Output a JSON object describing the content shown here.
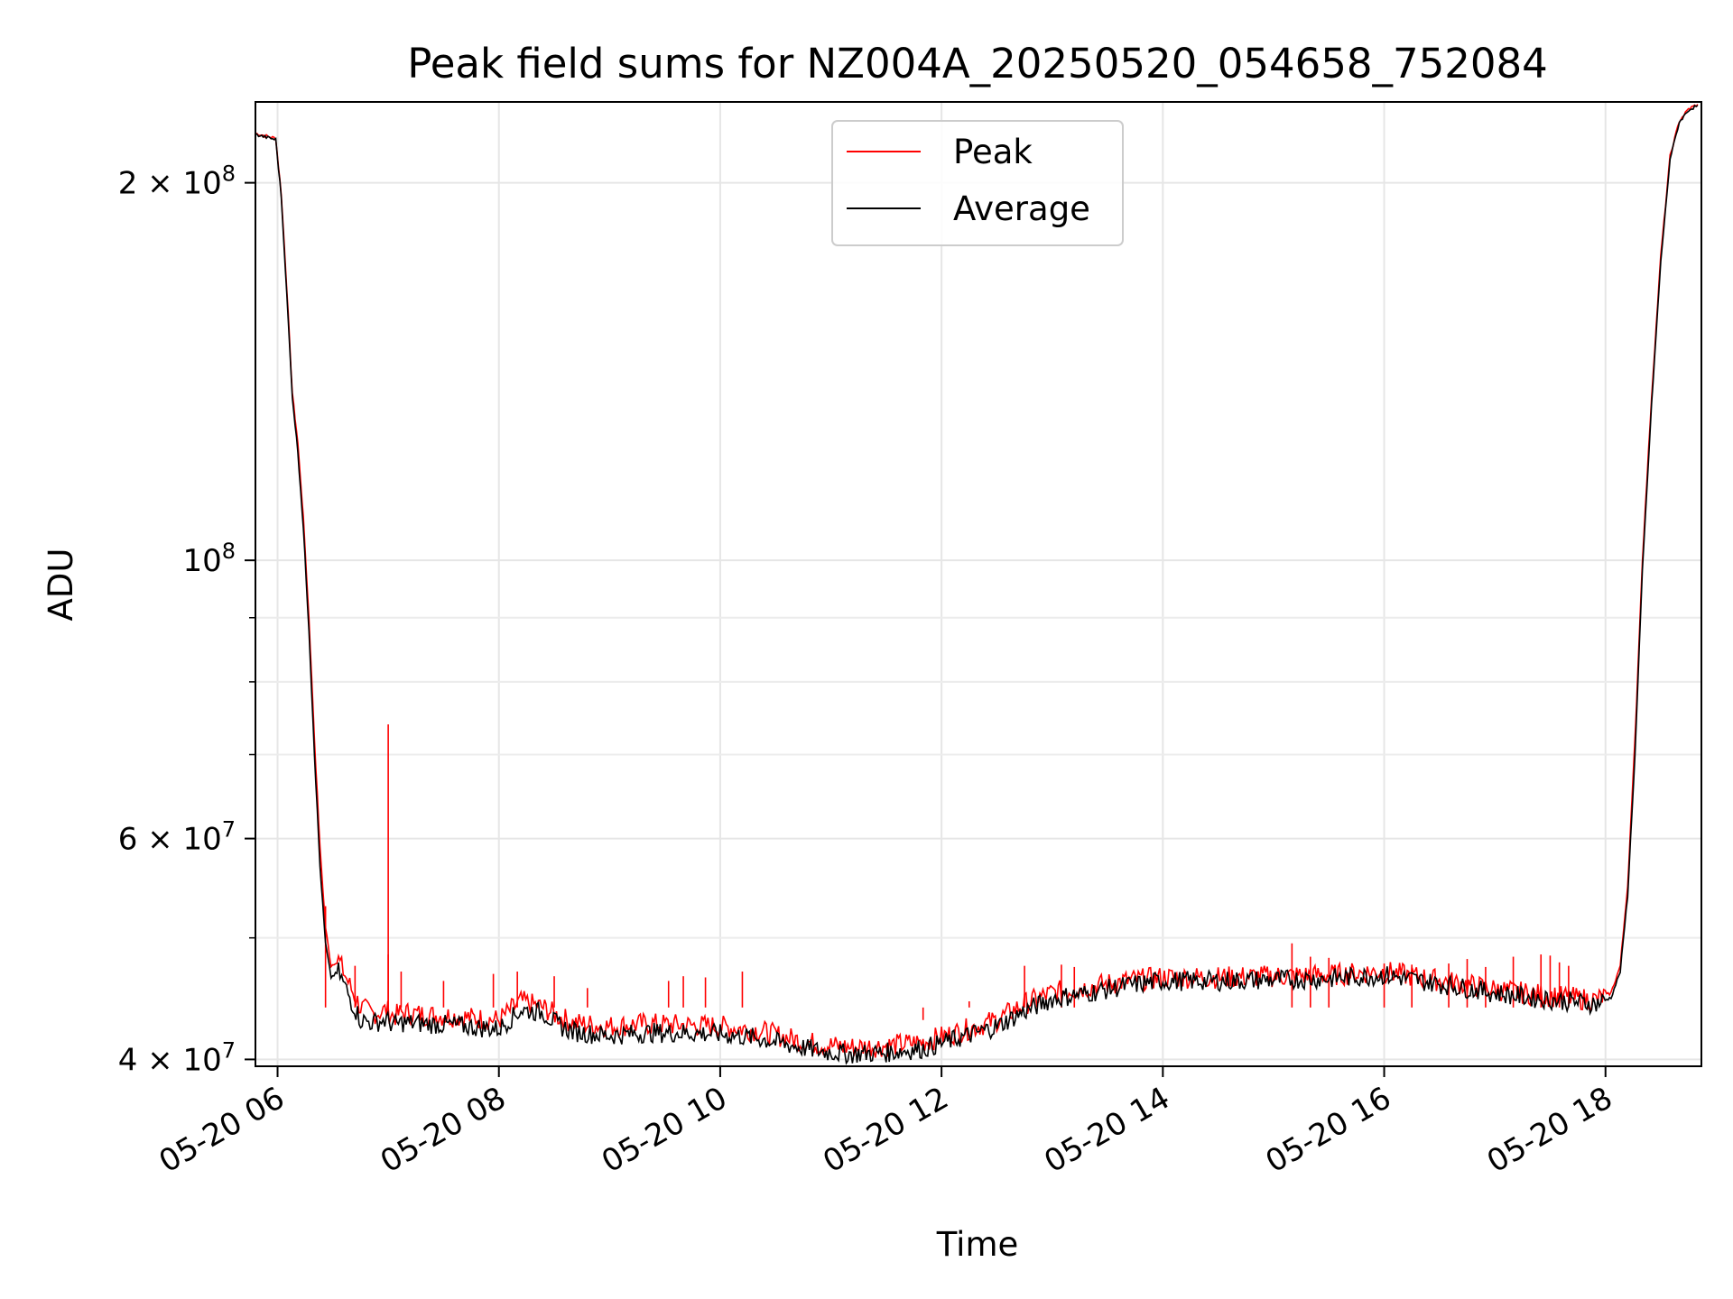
{
  "chart_data": {
    "type": "line",
    "title": "Peak field sums for NZ004A_20250520_054658_752084",
    "xlabel": "Time",
    "ylabel": "ADU",
    "y_scale": "log",
    "ylim": [
      39500000,
      232000000
    ],
    "xlim": [
      "2025-05-20 05:48",
      "2025-05-20 18:52"
    ],
    "grid": true,
    "legend_position": "top-center",
    "x_ticks": [
      {
        "x": "2025-05-20 06:00",
        "label": "05-20 06"
      },
      {
        "x": "2025-05-20 08:00",
        "label": "05-20 08"
      },
      {
        "x": "2025-05-20 10:00",
        "label": "05-20 10"
      },
      {
        "x": "2025-05-20 12:00",
        "label": "05-20 12"
      },
      {
        "x": "2025-05-20 14:00",
        "label": "05-20 14"
      },
      {
        "x": "2025-05-20 16:00",
        "label": "05-20 16"
      },
      {
        "x": "2025-05-20 18:00",
        "label": "05-20 18"
      }
    ],
    "y_major_ticks": [
      {
        "value": 40000000,
        "mantissa": "4",
        "exponent": "7"
      },
      {
        "value": 60000000,
        "mantissa": "6",
        "exponent": "7"
      },
      {
        "value": 100000000,
        "mantissa": "",
        "exponent": "8"
      },
      {
        "value": 200000000,
        "mantissa": "2",
        "exponent": "8"
      }
    ],
    "y_minor_ticks": [
      50000000,
      70000000,
      80000000,
      90000000
    ],
    "series": [
      {
        "name": "Peak",
        "color": "#ff0000",
        "x": [
          "2025-05-20 05:48",
          "2025-05-20 05:59",
          "2025-05-20 06:02",
          "2025-05-20 06:05",
          "2025-05-20 06:08",
          "2025-05-20 06:11",
          "2025-05-20 06:14",
          "2025-05-20 06:17",
          "2025-05-20 06:20",
          "2025-05-20 06:23",
          "2025-05-20 06:26",
          "2025-05-20 06:29",
          "2025-05-20 06:33",
          "2025-05-20 06:40",
          "2025-05-20 06:45",
          "2025-05-20 06:52",
          "2025-05-20 06:59",
          "2025-05-20 07:03",
          "2025-05-20 07:08",
          "2025-05-20 07:20",
          "2025-05-20 07:35",
          "2025-05-20 07:50",
          "2025-05-20 08:00",
          "2025-05-20 08:12",
          "2025-05-20 08:24",
          "2025-05-20 08:32",
          "2025-05-20 08:40",
          "2025-05-20 08:52",
          "2025-05-20 09:00",
          "2025-05-20 09:20",
          "2025-05-20 09:40",
          "2025-05-20 10:00",
          "2025-05-20 10:20",
          "2025-05-20 10:40",
          "2025-05-20 10:55",
          "2025-05-20 11:10",
          "2025-05-20 11:30",
          "2025-05-20 11:50",
          "2025-05-20 12:10",
          "2025-05-20 12:30",
          "2025-05-20 12:45",
          "2025-05-20 13:00",
          "2025-05-20 13:20",
          "2025-05-20 13:40",
          "2025-05-20 14:00",
          "2025-05-20 14:30",
          "2025-05-20 15:00",
          "2025-05-20 15:30",
          "2025-05-20 16:00",
          "2025-05-20 16:20",
          "2025-05-20 16:40",
          "2025-05-20 17:00",
          "2025-05-20 17:20",
          "2025-05-20 17:40",
          "2025-05-20 17:55",
          "2025-05-20 18:03",
          "2025-05-20 18:08",
          "2025-05-20 18:12",
          "2025-05-20 18:16",
          "2025-05-20 18:20",
          "2025-05-20 18:25",
          "2025-05-20 18:30",
          "2025-05-20 18:35",
          "2025-05-20 18:40",
          "2025-05-20 18:45",
          "2025-05-20 18:50"
        ],
        "y": [
          219000000,
          217000000,
          196000000,
          165000000,
          136000000,
          124000000,
          108000000,
          90000000,
          72000000,
          59000000,
          51000000,
          47500000,
          48000000,
          45500000,
          44000000,
          43500000,
          43800000,
          43300000,
          43600000,
          43400000,
          43300000,
          43100000,
          43000000,
          44500000,
          44000000,
          43300000,
          42800000,
          42600000,
          42500000,
          42700000,
          42600000,
          42500000,
          42200000,
          41500000,
          41100000,
          40900000,
          41000000,
          41300000,
          42100000,
          43000000,
          44300000,
          45200000,
          45700000,
          46200000,
          46500000,
          46500000,
          46600000,
          46700000,
          47000000,
          46500000,
          46000000,
          45500000,
          45100000,
          44800000,
          44600000,
          45200000,
          47500000,
          55000000,
          72000000,
          100000000,
          135000000,
          175000000,
          210000000,
          224000000,
          229000000,
          231000000
        ],
        "spikes": [
          {
            "x": "2025-05-20 07:00",
            "y": 74000000
          },
          {
            "x": "2025-05-20 07:00",
            "y": 48500000
          },
          {
            "x": "2025-05-20 06:26",
            "y": 53000000
          },
          {
            "x": "2025-05-20 06:42",
            "y": 47500000
          },
          {
            "x": "2025-05-20 07:07",
            "y": 47000000
          },
          {
            "x": "2025-05-20 07:30",
            "y": 46200000
          },
          {
            "x": "2025-05-20 07:57",
            "y": 46800000
          },
          {
            "x": "2025-05-20 08:10",
            "y": 47000000
          },
          {
            "x": "2025-05-20 08:30",
            "y": 46600000
          },
          {
            "x": "2025-05-20 08:48",
            "y": 45600000
          },
          {
            "x": "2025-05-20 09:32",
            "y": 46200000
          },
          {
            "x": "2025-05-20 09:40",
            "y": 46600000
          },
          {
            "x": "2025-05-20 09:52",
            "y": 46500000
          },
          {
            "x": "2025-05-20 10:12",
            "y": 47000000
          },
          {
            "x": "2025-05-20 11:50",
            "y": 43000000
          },
          {
            "x": "2025-05-20 12:05",
            "y": 44000000
          },
          {
            "x": "2025-05-20 12:15",
            "y": 44500000
          },
          {
            "x": "2025-05-20 12:45",
            "y": 47500000
          },
          {
            "x": "2025-05-20 13:05",
            "y": 47600000
          },
          {
            "x": "2025-05-20 13:12",
            "y": 47400000
          },
          {
            "x": "2025-05-20 15:10",
            "y": 49500000
          },
          {
            "x": "2025-05-20 15:20",
            "y": 48300000
          },
          {
            "x": "2025-05-20 15:30",
            "y": 48200000
          },
          {
            "x": "2025-05-20 16:00",
            "y": 47700000
          },
          {
            "x": "2025-05-20 16:15",
            "y": 47600000
          },
          {
            "x": "2025-05-20 16:35",
            "y": 47700000
          },
          {
            "x": "2025-05-20 16:45",
            "y": 48100000
          },
          {
            "x": "2025-05-20 16:55",
            "y": 47400000
          },
          {
            "x": "2025-05-20 17:10",
            "y": 48300000
          },
          {
            "x": "2025-05-20 17:25",
            "y": 48500000
          },
          {
            "x": "2025-05-20 17:30",
            "y": 48400000
          },
          {
            "x": "2025-05-20 17:35",
            "y": 47800000
          },
          {
            "x": "2025-05-20 17:40",
            "y": 47500000
          }
        ]
      },
      {
        "name": "Average",
        "color": "#000000",
        "x": [
          "2025-05-20 05:48",
          "2025-05-20 05:59",
          "2025-05-20 06:02",
          "2025-05-20 06:05",
          "2025-05-20 06:08",
          "2025-05-20 06:11",
          "2025-05-20 06:14",
          "2025-05-20 06:17",
          "2025-05-20 06:20",
          "2025-05-20 06:23",
          "2025-05-20 06:26",
          "2025-05-20 06:29",
          "2025-05-20 06:33",
          "2025-05-20 06:40",
          "2025-05-20 06:45",
          "2025-05-20 06:52",
          "2025-05-20 06:59",
          "2025-05-20 07:03",
          "2025-05-20 07:08",
          "2025-05-20 07:20",
          "2025-05-20 07:35",
          "2025-05-20 07:50",
          "2025-05-20 08:00",
          "2025-05-20 08:12",
          "2025-05-20 08:24",
          "2025-05-20 08:32",
          "2025-05-20 08:40",
          "2025-05-20 08:52",
          "2025-05-20 09:00",
          "2025-05-20 09:20",
          "2025-05-20 09:40",
          "2025-05-20 10:00",
          "2025-05-20 10:20",
          "2025-05-20 10:40",
          "2025-05-20 10:55",
          "2025-05-20 11:10",
          "2025-05-20 11:30",
          "2025-05-20 11:50",
          "2025-05-20 12:10",
          "2025-05-20 12:30",
          "2025-05-20 12:45",
          "2025-05-20 13:00",
          "2025-05-20 13:20",
          "2025-05-20 13:40",
          "2025-05-20 14:00",
          "2025-05-20 14:30",
          "2025-05-20 15:00",
          "2025-05-20 15:30",
          "2025-05-20 16:00",
          "2025-05-20 16:20",
          "2025-05-20 16:40",
          "2025-05-20 17:00",
          "2025-05-20 17:20",
          "2025-05-20 17:40",
          "2025-05-20 17:55",
          "2025-05-20 18:03",
          "2025-05-20 18:08",
          "2025-05-20 18:12",
          "2025-05-20 18:16",
          "2025-05-20 18:20",
          "2025-05-20 18:25",
          "2025-05-20 18:30",
          "2025-05-20 18:35",
          "2025-05-20 18:40",
          "2025-05-20 18:45",
          "2025-05-20 18:50"
        ],
        "y": [
          218500000,
          216500000,
          195000000,
          163000000,
          135000000,
          122000000,
          106000000,
          88000000,
          70000000,
          57000000,
          49500000,
          46500000,
          47000000,
          44500000,
          43000000,
          42800000,
          43000000,
          42600000,
          42800000,
          42700000,
          42600000,
          42400000,
          42300000,
          43800000,
          43600000,
          42600000,
          42100000,
          41900000,
          41800000,
          42000000,
          42000000,
          41900000,
          41600000,
          41000000,
          40600000,
          40400000,
          40500000,
          40800000,
          41600000,
          42500000,
          43700000,
          44700000,
          45200000,
          45800000,
          46200000,
          46200000,
          46300000,
          46400000,
          46700000,
          46200000,
          45700000,
          45200000,
          44800000,
          44500000,
          44300000,
          44800000,
          47000000,
          54000000,
          70000000,
          98000000,
          133000000,
          173000000,
          209000000,
          223500000,
          228500000,
          230500000
        ]
      }
    ]
  }
}
